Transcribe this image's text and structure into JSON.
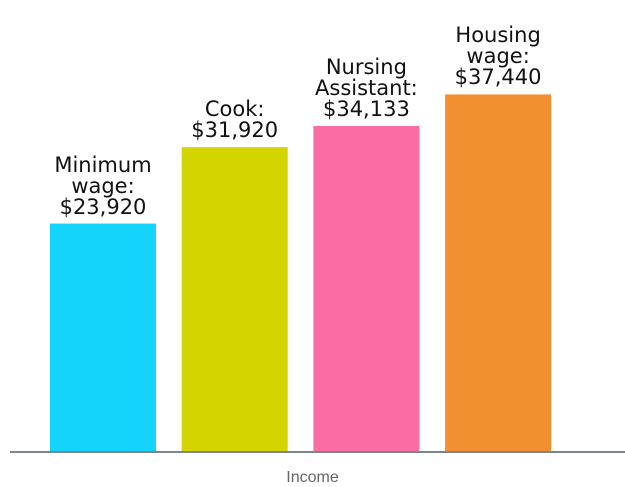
{
  "chart_data": {
    "type": "bar",
    "x_label": "Income",
    "categories": [
      "Minimum wage:",
      "Cook:",
      "Nursing Assistant:",
      "Housing wage:"
    ],
    "values": [
      23920,
      31920,
      34133,
      37440
    ],
    "value_labels": [
      "$23,920",
      "$31,920",
      "$34,133",
      "$37,440"
    ],
    "colors": [
      "#14d4fc",
      "#d4d400",
      "#fc6ca4",
      "#f28f30"
    ],
    "ylim": [
      0,
      40000
    ]
  }
}
